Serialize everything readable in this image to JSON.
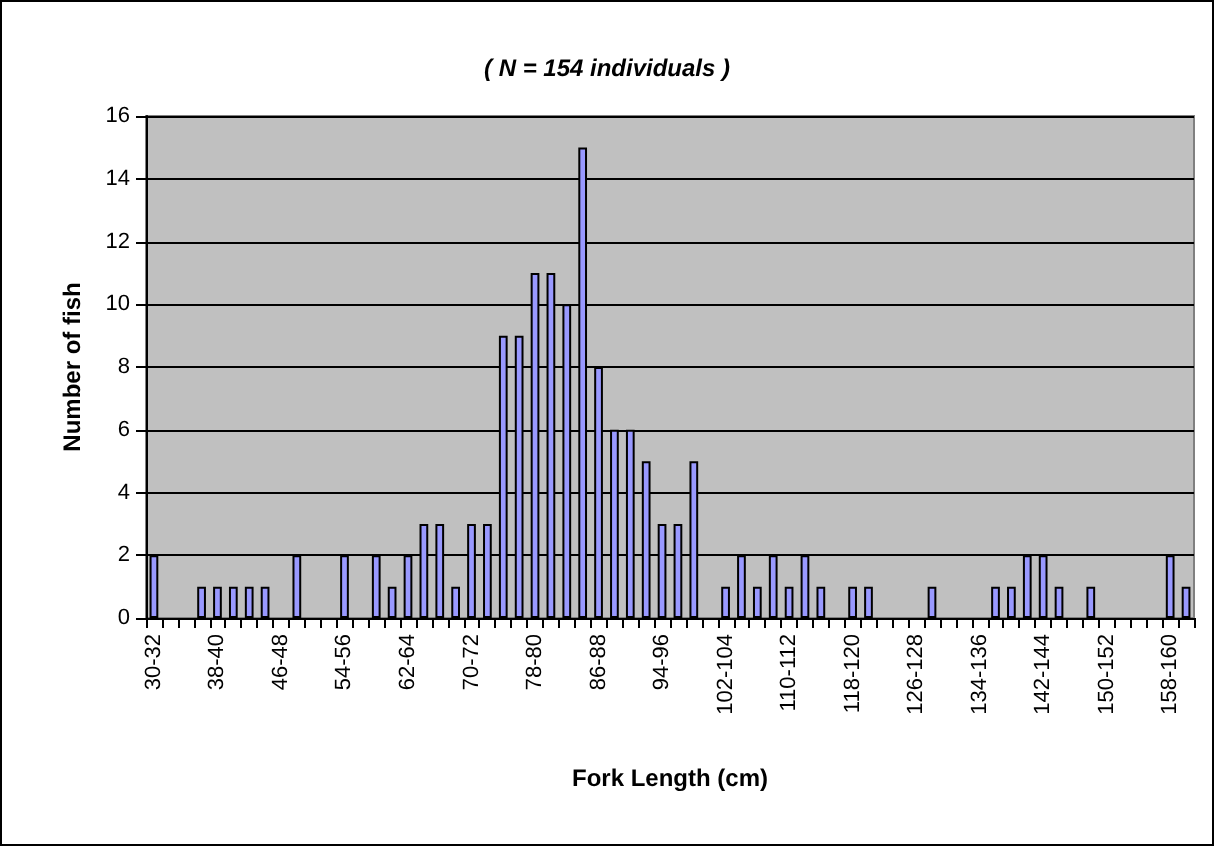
{
  "chart_data": {
    "type": "bar",
    "title": "( N = 154 individuals )",
    "xlabel": "Fork Length (cm)",
    "ylabel": "Number of fish",
    "categories": [
      "30-32",
      null,
      null,
      null,
      "38-40",
      null,
      null,
      null,
      "46-48",
      null,
      null,
      null,
      "54-56",
      null,
      null,
      null,
      "62-64",
      null,
      null,
      null,
      "70-72",
      null,
      null,
      null,
      "78-80",
      null,
      null,
      null,
      "86-88",
      null,
      null,
      null,
      "94-96",
      null,
      null,
      null,
      "102-104",
      null,
      null,
      null,
      "110-112",
      null,
      null,
      null,
      "118-120",
      null,
      null,
      null,
      "126-128",
      null,
      null,
      null,
      "134-136",
      null,
      null,
      null,
      "142-144",
      null,
      null,
      null,
      "150-152",
      null,
      null,
      null,
      "158-160",
      null
    ],
    "values": [
      2,
      0,
      0,
      1,
      1,
      1,
      1,
      1,
      0,
      2,
      0,
      0,
      2,
      0,
      2,
      1,
      2,
      3,
      3,
      1,
      3,
      3,
      9,
      9,
      11,
      11,
      10,
      15,
      8,
      6,
      6,
      5,
      3,
      3,
      5,
      0,
      1,
      2,
      1,
      2,
      1,
      2,
      1,
      0,
      1,
      1,
      0,
      0,
      0,
      1,
      0,
      0,
      0,
      1,
      1,
      2,
      2,
      1,
      0,
      1,
      0,
      0,
      0,
      0,
      2,
      1
    ],
    "color": "#9999ff",
    "ylim": [
      0,
      16
    ],
    "yticks": [
      0,
      2,
      4,
      6,
      8,
      10,
      12,
      14,
      16
    ],
    "grid": "y"
  }
}
